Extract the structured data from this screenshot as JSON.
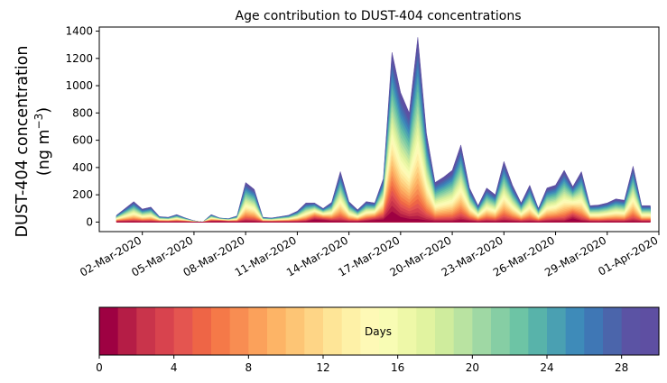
{
  "chart_data": [
    {
      "type": "area",
      "title": "Age contribution to DUST-404 concentrations",
      "ylabel_line1": "DUST-404 concentration",
      "ylabel_line2": "(ng m",
      "ylabel_sup": "−3",
      "ylabel_close": ")",
      "ylim": [
        -70,
        1430
      ],
      "xlim_days": [
        -1.5,
        31.0
      ],
      "y_ticks": [
        0,
        200,
        400,
        600,
        800,
        1000,
        1200,
        1400
      ],
      "x_ticks": [
        {
          "day": 1,
          "label": "02-Mar-2020"
        },
        {
          "day": 4,
          "label": "05-Mar-2020"
        },
        {
          "day": 7,
          "label": "08-Mar-2020"
        },
        {
          "day": 10,
          "label": "11-Mar-2020"
        },
        {
          "day": 13,
          "label": "14-Mar-2020"
        },
        {
          "day": 16,
          "label": "17-Mar-2020"
        },
        {
          "day": 19,
          "label": "20-Mar-2020"
        },
        {
          "day": 22,
          "label": "23-Mar-2020"
        },
        {
          "day": 25,
          "label": "26-Mar-2020"
        },
        {
          "day": 28,
          "label": "29-Mar-2020"
        },
        {
          "day": 31,
          "label": "01-Apr-2020"
        }
      ],
      "series_total": {
        "x_days": [
          -0.5,
          0.5,
          1,
          1.5,
          2,
          2.5,
          3,
          3.5,
          4,
          4.5,
          5,
          5.5,
          6,
          6.5,
          7,
          7.5,
          8,
          8.5,
          9,
          9.5,
          10,
          10.5,
          11,
          11.5,
          12,
          12.5,
          13,
          13.5,
          14,
          14.5,
          15,
          15.5,
          16,
          16.5,
          17,
          17.5,
          18,
          18.5,
          19,
          19.5,
          20,
          20.5,
          21,
          21.5,
          22,
          22.5,
          23,
          23.5,
          24,
          24.5,
          25,
          25.5,
          26,
          26.5,
          27,
          27.5,
          28,
          28.5,
          29,
          29.5,
          30,
          30.5
        ],
        "total": [
          50,
          150,
          95,
          110,
          40,
          35,
          55,
          30,
          10,
          0,
          55,
          30,
          25,
          45,
          290,
          240,
          35,
          30,
          40,
          50,
          80,
          140,
          140,
          100,
          145,
          370,
          150,
          90,
          150,
          140,
          320,
          1245,
          950,
          800,
          1355,
          650,
          290,
          330,
          380,
          565,
          250,
          120,
          250,
          200,
          445,
          270,
          140,
          270,
          100,
          250,
          270,
          380,
          260,
          370,
          120,
          125,
          140,
          170,
          160,
          410,
          120,
          120
        ],
        "fresh": [
          10,
          5,
          5,
          5,
          5,
          5,
          5,
          5,
          0,
          0,
          15,
          20,
          10,
          5,
          10,
          5,
          5,
          5,
          5,
          5,
          5,
          10,
          80,
          60,
          30,
          10,
          5,
          10,
          30,
          60,
          80,
          370,
          150,
          80,
          40,
          20,
          10,
          10,
          5,
          40,
          20,
          5,
          10,
          5,
          20,
          10,
          5,
          5,
          5,
          10,
          20,
          10,
          130,
          20,
          10,
          5,
          10,
          5,
          5,
          10,
          10,
          10
        ]
      },
      "colorbar": {
        "label": "Days",
        "min": 0,
        "max": 30,
        "tick_values": [
          0,
          4,
          8,
          12,
          16,
          20,
          24,
          28
        ],
        "tick_labels": [
          "0",
          "4",
          "8",
          "12",
          "16",
          "20",
          "24",
          "28"
        ],
        "colors": [
          "#9e0142",
          "#b51d46",
          "#c9344b",
          "#d8434e",
          "#e45550",
          "#ee6546",
          "#f57948",
          "#f88d52",
          "#fba15b",
          "#fdb466",
          "#fdc575",
          "#fed586",
          "#fee597",
          "#fef1a7",
          "#fef9b6",
          "#f8fcb4",
          "#eef8a8",
          "#e1f3a0",
          "#cfec9d",
          "#b9e3a1",
          "#9fd8a4",
          "#86cea4",
          "#6dc4a5",
          "#58b3aa",
          "#4aa0b2",
          "#3e8bb9",
          "#3f77b5",
          "#4b65ab",
          "#5b53a4",
          "#5e4fa2"
        ]
      }
    }
  ]
}
